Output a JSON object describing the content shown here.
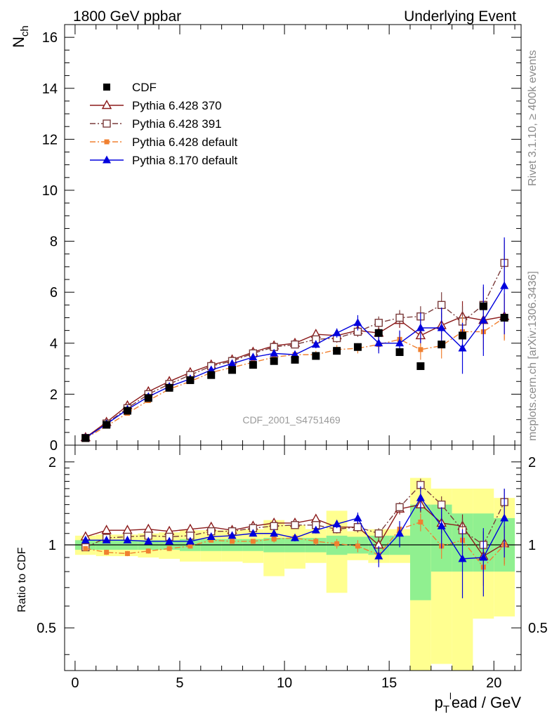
{
  "header": {
    "left": "1800 GeV ppbar",
    "right": "Underlying Event"
  },
  "side": {
    "top": "Rivet 3.1.10, ≥ 400k events",
    "bottom": "mcplots.cern.ch [arXiv:1306.3436]"
  },
  "watermark": "CDF_2001_S4751469",
  "colors": {
    "cdf": "#000000",
    "p370": "#8b1a1a",
    "p391": "#7a3b3b",
    "p6def": "#f08030",
    "p8": "#0000dd",
    "band_inner": "#90f090",
    "band_outer": "#ffff90"
  },
  "chart_data": [
    {
      "type": "scatter",
      "title": "",
      "xlabel": "p_T^lead / GeV",
      "ylabel": "N_ch",
      "ylabel_main": "N",
      "ylabel_sub": "ch",
      "xlabel_main": "p",
      "xlabel_sub": "T",
      "xlabel_sup": "l",
      "xlabel_rest": "ead / GeV",
      "xlim": [
        -0.5,
        21.3
      ],
      "ylim": [
        0,
        16.5
      ],
      "yticks": [
        "0",
        "2",
        "4",
        "6",
        "8",
        "10",
        "12",
        "14",
        "16"
      ],
      "legend_position": "top-left",
      "x": [
        0.5,
        1.5,
        2.5,
        3.5,
        4.5,
        5.5,
        6.5,
        7.5,
        8.5,
        9.5,
        10.5,
        11.5,
        12.5,
        13.5,
        14.5,
        15.5,
        16.5,
        17.5,
        18.5,
        19.5,
        20.5
      ],
      "series": [
        {
          "name": "CDF",
          "key": "cdf",
          "marker": "square-filled",
          "line": "none",
          "x": [
            0.5,
            1.5,
            2.5,
            3.5,
            4.5,
            5.5,
            6.5,
            7.5,
            8.5,
            9.5,
            10.5,
            11.5,
            12.5,
            13.5,
            14.5,
            15.5,
            16.5,
            17.5,
            18.5,
            19.5,
            20.5
          ],
          "values": [
            0.28,
            0.8,
            1.35,
            1.85,
            2.25,
            2.55,
            2.75,
            2.95,
            3.15,
            3.3,
            3.35,
            3.5,
            3.7,
            3.85,
            4.4,
            3.65,
            3.1,
            3.95,
            4.3,
            5.45,
            5.0
          ]
        },
        {
          "name": "Pythia 6.428 370",
          "key": "p370",
          "marker": "triangle-open",
          "line": "solid",
          "values": [
            0.3,
            0.9,
            1.55,
            2.1,
            2.5,
            2.85,
            3.15,
            3.35,
            3.65,
            3.9,
            4.0,
            4.35,
            4.3,
            4.5,
            4.4,
            4.9,
            4.3,
            4.7,
            5.05,
            4.9,
            5.05
          ],
          "errors": [
            0.03,
            0.04,
            0.05,
            0.06,
            0.06,
            0.07,
            0.07,
            0.08,
            0.08,
            0.1,
            0.12,
            0.15,
            0.18,
            0.2,
            0.25,
            0.3,
            0.4,
            0.5,
            0.6,
            0.7,
            0.9
          ]
        },
        {
          "name": "Pythia 6.428 391",
          "key": "p391",
          "marker": "square-open",
          "line": "dashdot",
          "values": [
            0.28,
            0.85,
            1.45,
            2.0,
            2.4,
            2.75,
            3.1,
            3.3,
            3.6,
            3.85,
            3.95,
            4.15,
            4.2,
            4.45,
            4.8,
            5.0,
            5.05,
            5.5,
            4.85,
            5.5,
            7.15
          ],
          "errors": [
            0.03,
            0.04,
            0.05,
            0.06,
            0.06,
            0.07,
            0.07,
            0.08,
            0.08,
            0.1,
            0.12,
            0.15,
            0.18,
            0.2,
            0.25,
            0.3,
            0.4,
            0.5,
            0.6,
            0.7,
            0.9
          ]
        },
        {
          "name": "Pythia 6.428 default",
          "key": "p6def",
          "marker": "square-filled-small",
          "line": "dashdot",
          "values": [
            0.27,
            0.75,
            1.25,
            1.75,
            2.2,
            2.5,
            2.85,
            3.05,
            3.25,
            3.45,
            3.55,
            3.55,
            3.75,
            3.8,
            3.95,
            4.15,
            3.75,
            3.9,
            4.45,
            4.45,
            5.0
          ],
          "errors": [
            0.03,
            0.04,
            0.05,
            0.06,
            0.06,
            0.07,
            0.07,
            0.08,
            0.08,
            0.1,
            0.12,
            0.15,
            0.18,
            0.2,
            0.25,
            0.3,
            0.4,
            0.5,
            0.6,
            0.7,
            0.9
          ]
        },
        {
          "name": "Pythia 8.170 default",
          "key": "p8",
          "marker": "triangle-filled",
          "line": "solid",
          "values": [
            0.29,
            0.83,
            1.4,
            1.9,
            2.3,
            2.6,
            2.95,
            3.2,
            3.45,
            3.6,
            3.55,
            3.95,
            4.4,
            4.8,
            4.0,
            4.0,
            4.6,
            4.6,
            3.8,
            4.9,
            6.25
          ],
          "errors": [
            0.03,
            0.04,
            0.05,
            0.06,
            0.06,
            0.07,
            0.07,
            0.08,
            0.08,
            0.1,
            0.12,
            0.15,
            0.18,
            0.3,
            0.4,
            0.5,
            0.6,
            0.8,
            1.0,
            1.4,
            1.9
          ]
        }
      ]
    },
    {
      "type": "scatter",
      "title": "",
      "xlabel": "p_T^lead / GeV",
      "ylabel": "Ratio to CDF",
      "xlim": [
        -0.5,
        21.3
      ],
      "ylim": [
        0.35,
        2.3
      ],
      "scale": "log",
      "yticks": [
        0.5,
        1,
        2
      ],
      "ytick_labels": [
        "0.5",
        "1",
        "2"
      ],
      "xticks": [
        "0",
        "5",
        "10",
        "15",
        "20"
      ],
      "reference_line": 1,
      "bands": {
        "x_edges": [
          0,
          1,
          2,
          3,
          4,
          5,
          6,
          7,
          8,
          9,
          10,
          11,
          12,
          13,
          14,
          15,
          16,
          17,
          18,
          19,
          20,
          21
        ],
        "inner_lo": [
          0.96,
          0.96,
          0.96,
          0.96,
          0.96,
          0.95,
          0.95,
          0.95,
          0.95,
          0.94,
          0.94,
          0.94,
          0.92,
          0.93,
          0.92,
          0.92,
          0.63,
          0.8,
          0.8,
          0.8,
          0.8
        ],
        "inner_hi": [
          1.04,
          1.04,
          1.04,
          1.04,
          1.04,
          1.05,
          1.05,
          1.05,
          1.05,
          1.06,
          1.06,
          1.06,
          1.08,
          1.07,
          1.08,
          1.08,
          1.4,
          1.4,
          1.3,
          1.3,
          1.25
        ],
        "outer_lo": [
          0.92,
          0.91,
          0.91,
          0.9,
          0.89,
          0.87,
          0.87,
          0.87,
          0.86,
          0.77,
          0.82,
          0.86,
          0.67,
          0.88,
          0.86,
          0.86,
          0.35,
          0.37,
          0.35,
          0.54,
          0.55
        ],
        "outer_hi": [
          1.08,
          1.09,
          1.09,
          1.1,
          1.11,
          1.13,
          1.13,
          1.13,
          1.14,
          1.23,
          1.18,
          1.14,
          1.33,
          1.12,
          1.14,
          1.14,
          1.75,
          1.6,
          1.6,
          1.6,
          1.48
        ]
      },
      "series": [
        {
          "name": "Pythia 6.428 370",
          "key": "p370",
          "values": [
            1.07,
            1.13,
            1.13,
            1.14,
            1.12,
            1.14,
            1.16,
            1.13,
            1.17,
            1.2,
            1.2,
            1.24,
            1.16,
            1.16,
            1.0,
            1.35,
            1.4,
            1.2,
            1.17,
            0.91,
            1.01
          ],
          "errors": [
            0.02,
            0.02,
            0.02,
            0.02,
            0.02,
            0.02,
            0.02,
            0.02,
            0.02,
            0.03,
            0.03,
            0.03,
            0.04,
            0.05,
            0.05,
            0.06,
            0.09,
            0.1,
            0.12,
            0.12,
            0.16
          ]
        },
        {
          "name": "Pythia 6.428 391",
          "key": "p391",
          "values": [
            0.98,
            1.06,
            1.07,
            1.08,
            1.07,
            1.08,
            1.12,
            1.12,
            1.15,
            1.17,
            1.18,
            1.18,
            1.14,
            1.16,
            1.1,
            1.37,
            1.65,
            1.4,
            1.13,
            1.0,
            1.43
          ],
          "errors": [
            0.02,
            0.02,
            0.02,
            0.02,
            0.02,
            0.02,
            0.02,
            0.02,
            0.02,
            0.03,
            0.03,
            0.03,
            0.04,
            0.05,
            0.05,
            0.06,
            0.09,
            0.1,
            0.12,
            0.12,
            0.16
          ]
        },
        {
          "name": "Pythia 6.428 default",
          "key": "p6def",
          "values": [
            0.97,
            0.94,
            0.93,
            0.95,
            0.97,
            0.99,
            1.04,
            1.03,
            1.03,
            1.05,
            1.06,
            1.03,
            1.01,
            0.99,
            0.92,
            1.14,
            1.21,
            0.99,
            1.04,
            0.83,
            1.0
          ],
          "errors": [
            0.02,
            0.02,
            0.02,
            0.02,
            0.02,
            0.02,
            0.02,
            0.02,
            0.02,
            0.03,
            0.03,
            0.03,
            0.04,
            0.05,
            0.05,
            0.06,
            0.09,
            0.1,
            0.12,
            0.12,
            0.16
          ]
        },
        {
          "name": "Pythia 8.170 default",
          "key": "p8",
          "values": [
            1.04,
            1.04,
            1.04,
            1.03,
            1.03,
            1.03,
            1.07,
            1.08,
            1.1,
            1.1,
            1.06,
            1.13,
            1.19,
            1.25,
            0.91,
            1.1,
            1.48,
            1.17,
            0.89,
            0.9,
            1.25
          ],
          "errors": [
            0.02,
            0.02,
            0.02,
            0.02,
            0.02,
            0.02,
            0.02,
            0.02,
            0.02,
            0.03,
            0.03,
            0.03,
            0.04,
            0.06,
            0.08,
            0.12,
            0.15,
            0.2,
            0.25,
            0.25,
            0.35
          ]
        }
      ]
    }
  ]
}
